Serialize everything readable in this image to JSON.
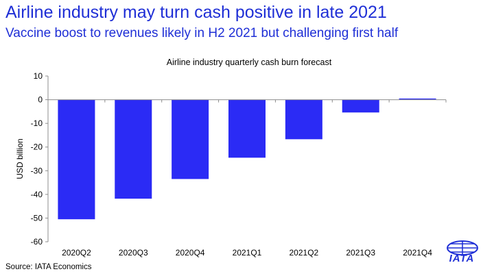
{
  "header": {
    "title": "Airline industry may turn cash positive in late 2021",
    "subtitle": "Vaccine boost to revenues likely in H2 2021 but challenging first half"
  },
  "footer": {
    "source": "Source: IATA Economics",
    "logo_text": "IATA"
  },
  "colors": {
    "accent": "#1f2fd6",
    "bar": "#2b2bf5"
  },
  "chart_data": {
    "type": "bar",
    "title": "Airline industry quarterly cash burn forecast",
    "xlabel": "",
    "ylabel": "USD billion",
    "ylim": [
      -60,
      10
    ],
    "yticks": [
      10,
      0,
      -10,
      -20,
      -30,
      -40,
      -50,
      -60
    ],
    "grid": false,
    "categories": [
      "2020Q2",
      "2020Q3",
      "2020Q4",
      "2021Q1",
      "2021Q2",
      "2021Q3",
      "2021Q4"
    ],
    "values": [
      -50.5,
      -41.8,
      -33.5,
      -24.5,
      -16.7,
      -5.4,
      0.5
    ]
  }
}
